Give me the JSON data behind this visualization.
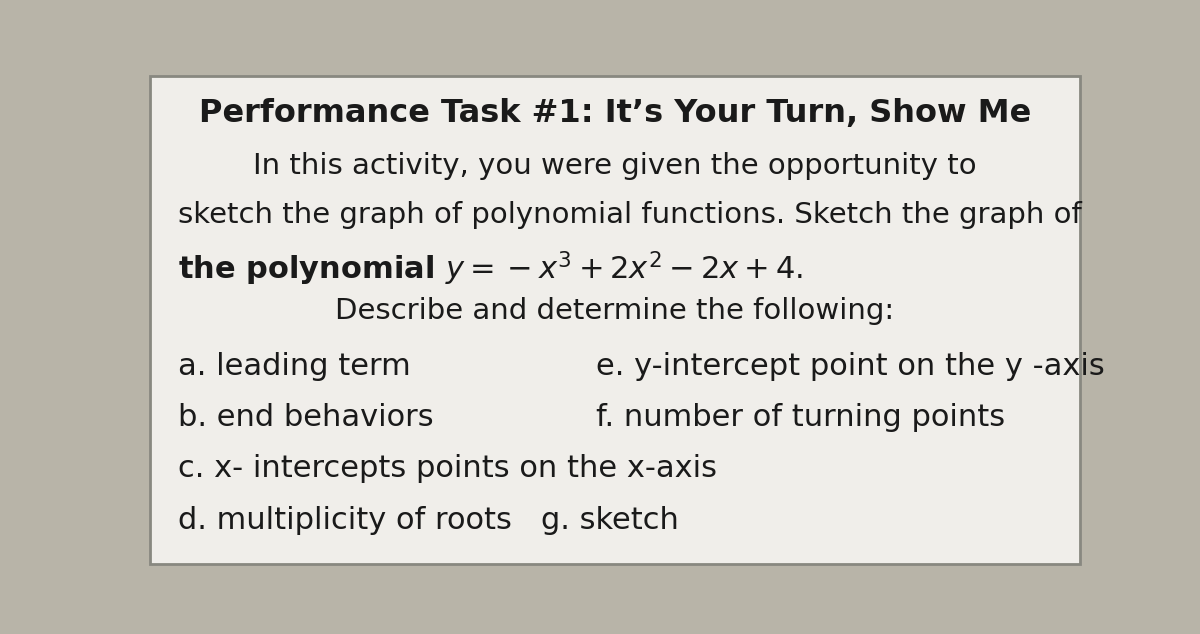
{
  "title": "Performance Task #1: It’s Your Turn, Show Me",
  "title_fontsize": 22,
  "bg_color": "#b8b4a8",
  "box_color": "#f0eeea",
  "border_color": "#888880",
  "intro_line1": "In this activity, you were given the opportunity to",
  "intro_line2": "sketch the graph of polynomial functions. Sketch the graph of",
  "intro_line3_pre": "the polynomial ",
  "intro_line3_math": "$y = -x^3 + 2x^2 - 2x + 4.$",
  "intro_line4": "Describe and determine the following:",
  "item_a": "a. leading term",
  "item_b": "b. end behaviors",
  "item_c": "c. x- intercepts points on the x-axis",
  "item_d": "d. multiplicity of roots",
  "item_e": "e. y-intercept point on the y -axis",
  "item_f": "f. number of turning points",
  "item_g": "g. sketch",
  "text_color": "#1a1a1a",
  "body_fontsize": 21,
  "title_fontsize_val": 23,
  "item_fontsize": 22
}
